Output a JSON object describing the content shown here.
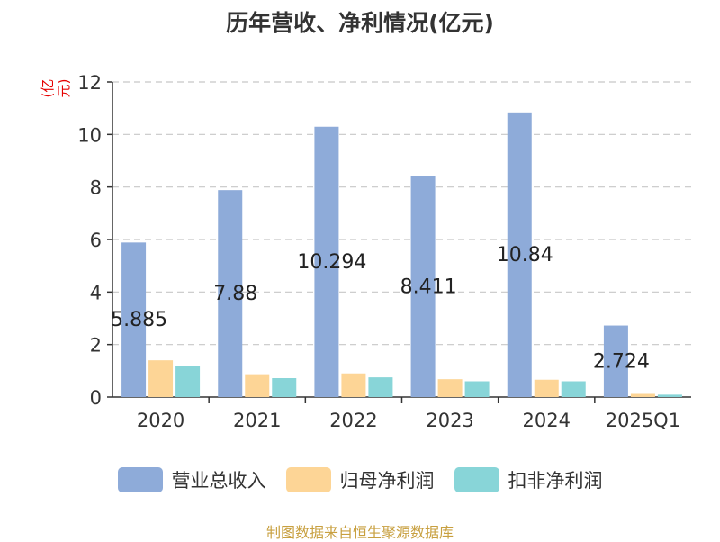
{
  "chart_data": {
    "type": "bar",
    "title": "历年营收、净利情况(亿元)",
    "ylabel": "(亿元)",
    "xlabel": "",
    "ylim": [
      0,
      12
    ],
    "yticks": [
      0,
      2,
      4,
      6,
      8,
      10,
      12
    ],
    "grid": true,
    "legend_position": "bottom",
    "categories": [
      "2020",
      "2021",
      "2022",
      "2023",
      "2024",
      "2025Q1"
    ],
    "series": [
      {
        "name": "营业总收入",
        "color": "#8eabd9",
        "values": [
          5.885,
          7.88,
          10.294,
          8.411,
          10.84,
          2.724
        ],
        "labels": [
          "5.885",
          "7.88",
          "10.294",
          "8.411",
          "10.84",
          "2.724"
        ]
      },
      {
        "name": "归母净利润",
        "color": "#fdd596",
        "values": [
          1.4,
          0.87,
          0.9,
          0.68,
          0.66,
          0.12
        ]
      },
      {
        "name": "扣非净利润",
        "color": "#88d5d8",
        "values": [
          1.18,
          0.72,
          0.75,
          0.6,
          0.6,
          0.09
        ]
      }
    ]
  },
  "source": "制图数据来自恒生聚源数据库"
}
